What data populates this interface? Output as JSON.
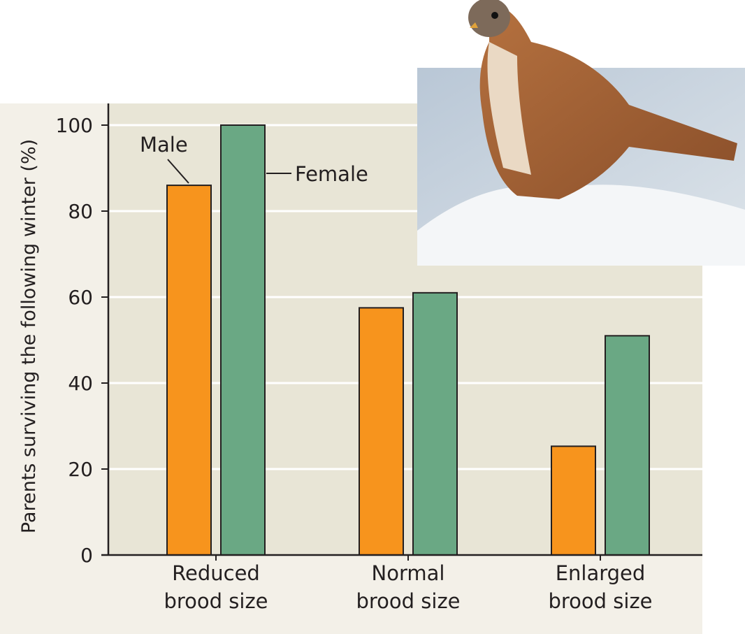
{
  "chart_data": {
    "type": "bar",
    "ylabel": "Parents surviving the following winter (%)",
    "xlabel": "",
    "ylim": [
      0,
      100
    ],
    "yticks": [
      0,
      20,
      40,
      60,
      80,
      100
    ],
    "grid": true,
    "categories": [
      [
        "Reduced",
        "brood size"
      ],
      [
        "Normal",
        "brood size"
      ],
      [
        "Enlarged",
        "brood size"
      ]
    ],
    "series": [
      {
        "name": "Male",
        "color": "#f7941d",
        "values": [
          86,
          57.5,
          25.3
        ]
      },
      {
        "name": "Female",
        "color": "#6aa884",
        "values": [
          100,
          61,
          51
        ]
      }
    ],
    "legend": "inline labels with leader lines on first category"
  },
  "colors": {
    "plot_bg": "#e8e5d6",
    "outer_bg": "#f3f0e8",
    "gridline": "#ffffff"
  },
  "photo": {
    "subject": "kestrel-on-snow"
  }
}
